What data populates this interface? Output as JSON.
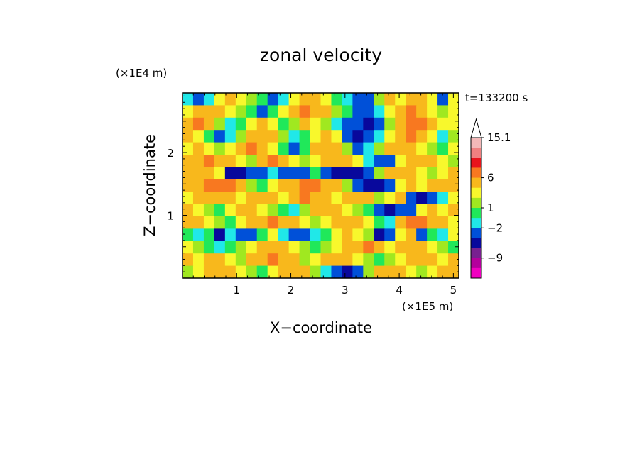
{
  "chart_data": {
    "type": "heatmap",
    "title": "zonal velocity",
    "time_label": "t=133200 s",
    "xlabel": "X−coordinate",
    "ylabel": "Z−coordinate",
    "x_unit": "(×1E5 m)",
    "y_unit": "(×1E4 m)",
    "xlim": [
      0.0,
      5.1
    ],
    "ylim": [
      0.0,
      2.95
    ],
    "x_ticks": [
      1,
      2,
      3,
      4,
      5
    ],
    "y_ticks": [
      1,
      2
    ],
    "colorbar": {
      "labels": [
        "15.1",
        "6",
        "1",
        "−2",
        "−9"
      ],
      "colors": [
        "#f4b8b8",
        "#f08080",
        "#e8141c",
        "#f87820",
        "#f8b81c",
        "#f8f82c",
        "#a0e820",
        "#20e85a",
        "#20e8e8",
        "#0050d8",
        "#08089c",
        "#782090",
        "#b4009c",
        "#f000c0"
      ]
    },
    "value_field": [
      [
        -2,
        -4,
        -2,
        1,
        2,
        1,
        0,
        -1,
        -3,
        -2,
        1,
        3,
        2,
        1,
        -1,
        -2,
        -4,
        -3,
        0,
        2,
        1,
        3,
        2,
        1,
        -3,
        1
      ],
      [
        1,
        2,
        3,
        2,
        1,
        0,
        -1,
        -3,
        -1,
        1,
        2,
        4,
        3,
        2,
        0,
        -1,
        -3,
        -5,
        -2,
        1,
        2,
        4,
        3,
        1,
        0,
        1
      ],
      [
        3,
        4,
        2,
        0,
        -2,
        -1,
        1,
        2,
        1,
        -1,
        0,
        2,
        1,
        0,
        -2,
        -3,
        -5,
        -6,
        -3,
        0,
        2,
        5,
        4,
        2,
        1,
        1
      ],
      [
        2,
        1,
        -1,
        -3,
        -2,
        0,
        2,
        3,
        2,
        0,
        -2,
        -1,
        1,
        2,
        1,
        -4,
        -6,
        -5,
        -2,
        1,
        3,
        4,
        3,
        1,
        -2,
        0
      ],
      [
        1,
        2,
        1,
        0,
        1,
        3,
        4,
        3,
        1,
        -1,
        -3,
        -1,
        2,
        3,
        2,
        0,
        -3,
        -2,
        0,
        2,
        3,
        2,
        1,
        0,
        -1,
        1
      ],
      [
        2,
        3,
        4,
        3,
        2,
        1,
        0,
        3,
        4,
        2,
        1,
        0,
        1,
        2,
        3,
        2,
        1,
        -2,
        -5,
        -4,
        1,
        2,
        3,
        2,
        1,
        0
      ],
      [
        3,
        3,
        2,
        1,
        -6,
        -7,
        -5,
        -3,
        -2,
        -4,
        -5,
        -3,
        -1,
        -5,
        -6,
        -7,
        -6,
        -3,
        0,
        2,
        3,
        2,
        1,
        0,
        1,
        2
      ],
      [
        2,
        3,
        4,
        5,
        4,
        2,
        0,
        -1,
        1,
        2,
        3,
        4,
        4,
        3,
        2,
        0,
        -5,
        -7,
        -6,
        -3,
        1,
        2,
        1,
        2,
        3,
        2
      ],
      [
        1,
        2,
        3,
        3,
        2,
        1,
        2,
        3,
        2,
        1,
        3,
        4,
        3,
        2,
        1,
        2,
        3,
        2,
        0,
        1,
        2,
        -5,
        -6,
        -4,
        -2,
        1
      ],
      [
        2,
        1,
        0,
        -1,
        1,
        2,
        3,
        1,
        0,
        -1,
        -2,
        0,
        2,
        3,
        2,
        1,
        0,
        -1,
        -4,
        -6,
        -5,
        -3,
        1,
        2,
        1,
        2
      ],
      [
        3,
        2,
        1,
        0,
        -1,
        1,
        2,
        3,
        4,
        3,
        2,
        1,
        0,
        1,
        2,
        3,
        2,
        1,
        -1,
        -2,
        3,
        4,
        5,
        3,
        2,
        1
      ],
      [
        -1,
        -2,
        -1,
        -6,
        -2,
        -5,
        -3,
        -1,
        1,
        -2,
        -4,
        -3,
        -2,
        -1,
        1,
        2,
        1,
        0,
        -6,
        -5,
        1,
        3,
        -4,
        -1,
        -2,
        1
      ],
      [
        1,
        0,
        -1,
        -2,
        -1,
        0,
        1,
        2,
        3,
        2,
        1,
        0,
        -1,
        0,
        1,
        2,
        3,
        4,
        3,
        1,
        2,
        3,
        2,
        1,
        0,
        -1
      ],
      [
        2,
        1,
        3,
        2,
        1,
        0,
        2,
        3,
        4,
        3,
        2,
        0,
        1,
        2,
        3,
        2,
        1,
        0,
        -1,
        0,
        1,
        2,
        3,
        2,
        1,
        2
      ],
      [
        0,
        1,
        2,
        3,
        2,
        1,
        0,
        -1,
        1,
        2,
        3,
        2,
        0,
        -2,
        -5,
        -6,
        -3,
        0,
        2,
        3,
        2,
        1,
        0,
        1,
        2,
        3
      ]
    ]
  }
}
